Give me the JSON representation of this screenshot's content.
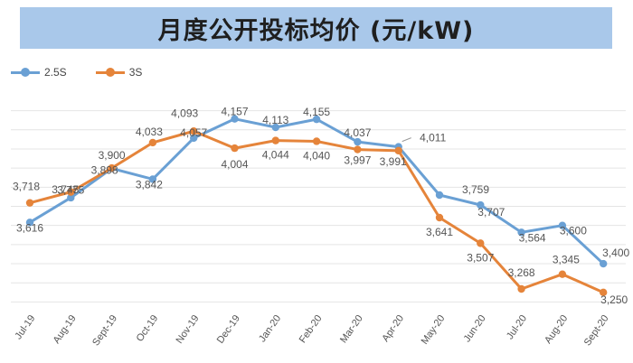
{
  "title": "月度公开投标均价 (元/kW)",
  "colors": {
    "series_2_5s": "#6aa0d4",
    "series_3s": "#e5843a",
    "title_bg": "#a9c8ea",
    "grid": "#e4e4e4"
  },
  "chart_data": {
    "type": "line",
    "title": "月度公开投标均价 (元/kW)",
    "xlabel": "",
    "ylabel": "",
    "ylim": [
      3150,
      4250
    ],
    "grid": true,
    "legend_position": "top-left",
    "categories": [
      "Jul-19",
      "Aug-19",
      "Sept-19",
      "Oct-19",
      "Nov-19",
      "Dec-19",
      "Jan-20",
      "Feb-20",
      "Mar-20",
      "Apr-20",
      "May-20",
      "Jun-20",
      "Jul-20",
      "Aug-20",
      "Sept-20"
    ],
    "series": [
      {
        "name": "2.5S",
        "values": [
          3616,
          3745,
          3898,
          3842,
          4057,
          4157,
          4113,
          4155,
          4037,
          4011,
          3759,
          3707,
          3564,
          3600,
          3400
        ]
      },
      {
        "name": "3S",
        "values": [
          3718,
          3775,
          3900,
          4033,
          4093,
          4004,
          4044,
          4040,
          3997,
          3991,
          3641,
          3507,
          3268,
          3345,
          3250
        ]
      }
    ],
    "data_labels": {
      "2.5S": [
        "3,616",
        "3,745",
        "3,898",
        "3,842",
        "4,057",
        "4,157",
        "4,113",
        "4,155",
        "4,037",
        "4,011",
        "3,759",
        "3,707",
        "3,564",
        "3,600",
        "3,400"
      ],
      "3S": [
        "3,718",
        "3,775",
        "3,900",
        "4,033",
        "4,093",
        "4,004",
        "4,044",
        "4,040",
        "3,997",
        "3,991",
        "3,641",
        "3,507",
        "3,268",
        "3,345",
        "3,250"
      ]
    }
  }
}
